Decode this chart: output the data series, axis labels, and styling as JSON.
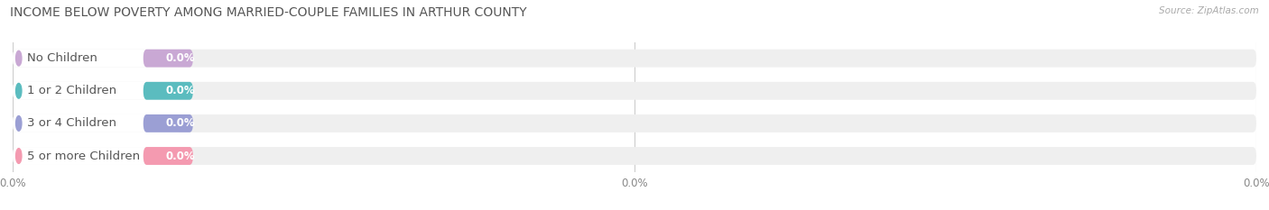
{
  "title": "INCOME BELOW POVERTY AMONG MARRIED-COUPLE FAMILIES IN ARTHUR COUNTY",
  "source": "Source: ZipAtlas.com",
  "categories": [
    "No Children",
    "1 or 2 Children",
    "3 or 4 Children",
    "5 or more Children"
  ],
  "values": [
    0.0,
    0.0,
    0.0,
    0.0
  ],
  "bar_colors": [
    "#c9a8d4",
    "#5bbcbf",
    "#9b9fd4",
    "#f49ab0"
  ],
  "bar_bg_color": "#efefef",
  "label_text_color": "#555555",
  "value_text_color": "#ffffff",
  "title_color": "#555555",
  "source_color": "#aaaaaa",
  "background_color": "#ffffff",
  "title_fontsize": 10,
  "label_fontsize": 9.5,
  "value_fontsize": 8.5,
  "figsize": [
    14.06,
    2.33
  ]
}
